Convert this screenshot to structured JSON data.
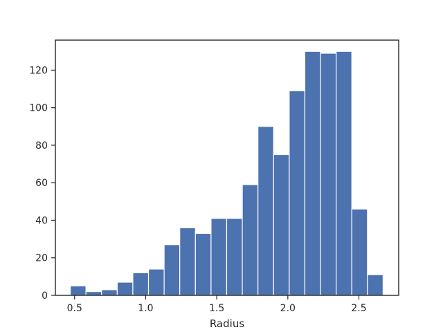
{
  "chart_data": {
    "type": "bar",
    "histogram": true,
    "title": "",
    "xlabel": "Radius",
    "ylabel": "",
    "xlim": [
      0.365,
      2.78
    ],
    "ylim": [
      0,
      136
    ],
    "bin_edges": [
      0.47,
      0.58,
      0.69,
      0.8,
      0.91,
      1.02,
      1.13,
      1.24,
      1.35,
      1.46,
      1.57,
      1.68,
      1.79,
      1.9,
      2.01,
      2.12,
      2.23,
      2.34,
      2.45,
      2.56,
      2.67
    ],
    "values": [
      5,
      2,
      3,
      7,
      12,
      14,
      27,
      36,
      33,
      41,
      41,
      59,
      90,
      75,
      109,
      130,
      129,
      130,
      46,
      11
    ],
    "x_ticks": [
      0.5,
      1.0,
      1.5,
      2.0,
      2.5
    ],
    "x_tick_labels": [
      "0.5",
      "1.0",
      "1.5",
      "2.0",
      "2.5"
    ],
    "y_ticks": [
      0,
      20,
      40,
      60,
      80,
      100,
      120
    ],
    "y_tick_labels": [
      "0",
      "20",
      "40",
      "60",
      "80",
      "100",
      "120"
    ],
    "grid": false,
    "colors": {
      "bar": "#4c72b0",
      "bar_edge": "#ffffff",
      "axes": "#262626"
    }
  }
}
